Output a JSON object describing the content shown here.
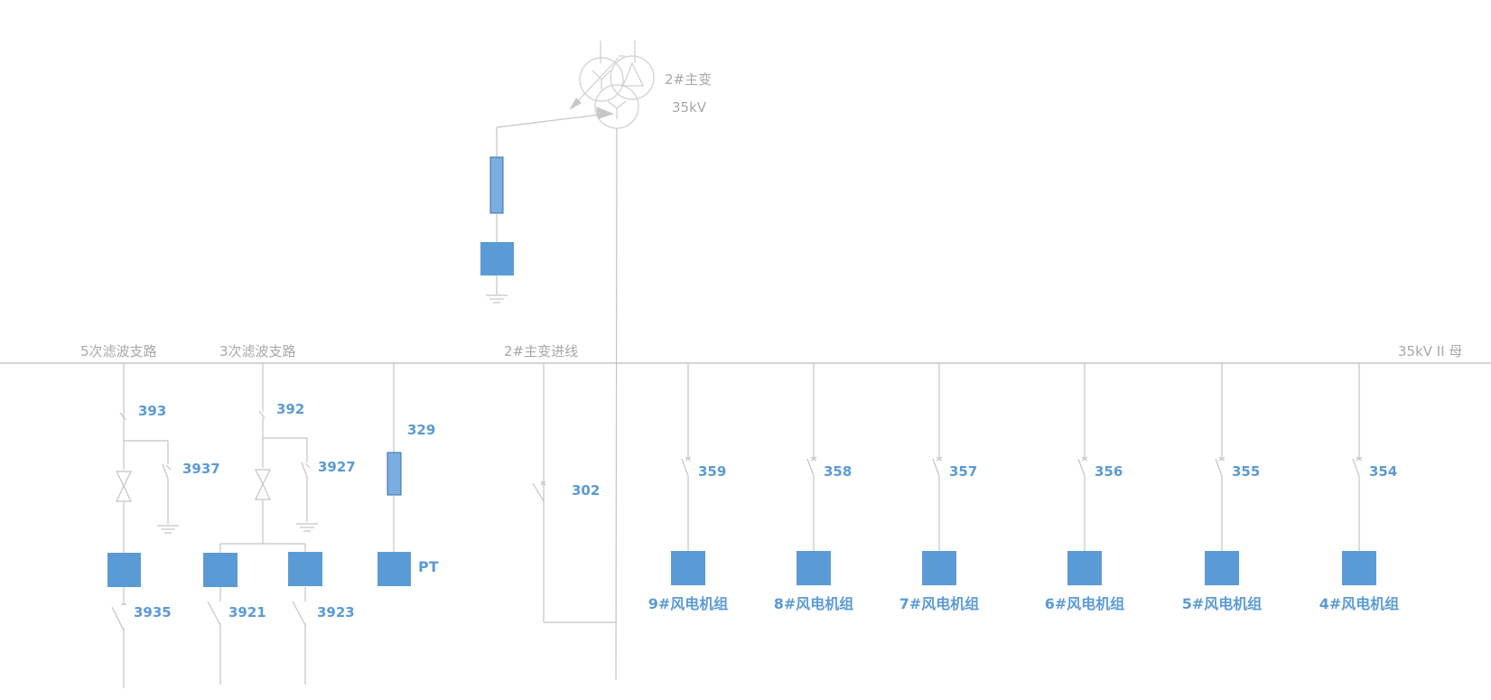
{
  "transformer": {
    "name": "2#主变",
    "voltage": "35kV"
  },
  "bus": {
    "name": "35kV II 母"
  },
  "branches": {
    "filter5": "5次滤波支路",
    "filter3": "3次滤波支路",
    "incoming": "2#主变进线"
  },
  "switches": {
    "s393": "393",
    "s3937": "3937",
    "s3935": "3935",
    "s392": "392",
    "s3927": "3927",
    "s3921": "3921",
    "s3923": "3923",
    "s329": "329",
    "pt": "PT",
    "s302": "302"
  },
  "feeders": [
    {
      "switch": "359",
      "name": "9#风电机组"
    },
    {
      "switch": "358",
      "name": "8#风电机组"
    },
    {
      "switch": "357",
      "name": "7#风电机组"
    },
    {
      "switch": "356",
      "name": "6#风电机组"
    },
    {
      "switch": "355",
      "name": "5#风电机组"
    },
    {
      "switch": "354",
      "name": "4#风电机组"
    }
  ],
  "colors": {
    "device": "#5b9bd5",
    "line": "#c4c4c4",
    "label_gray": "#a8a8a8"
  }
}
